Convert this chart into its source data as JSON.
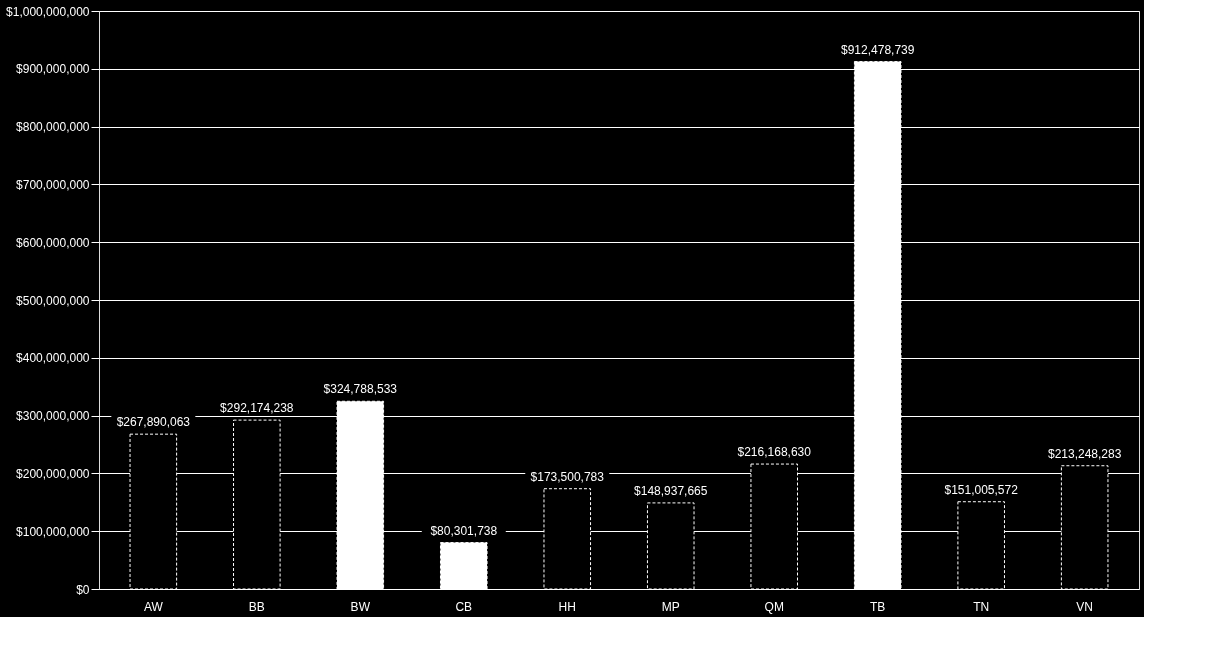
{
  "chart_data": {
    "type": "bar",
    "categories": [
      "AW",
      "BB",
      "BW",
      "CB",
      "HH",
      "MP",
      "QM",
      "TB",
      "TN",
      "VN"
    ],
    "values": [
      267890063,
      292174238,
      324788533,
      80301738,
      173500783,
      148937665,
      216168630,
      912478739,
      151005572,
      213248283
    ],
    "colors": [
      "#000000",
      "#000000",
      "#ffffff",
      "#ffffff",
      "#000000",
      "#000000",
      "#000000",
      "#ffffff",
      "#000000",
      "#000000"
    ],
    "value_labels": [
      "$267,890,063",
      "$292,174,238",
      "$324,788,533",
      "$80,301,738",
      "$173,500,783",
      "$148,937,665",
      "$216,168,630",
      "$912,478,739",
      "$151,005,572",
      "$213,248,283"
    ],
    "ylim": [
      0,
      1000000000
    ],
    "yticks": [
      {
        "value": 0,
        "label": "$0"
      },
      {
        "value": 100000000,
        "label": "$100,000,000"
      },
      {
        "value": 200000000,
        "label": "$200,000,000"
      },
      {
        "value": 300000000,
        "label": "$300,000,000"
      },
      {
        "value": 400000000,
        "label": "$400,000,000"
      },
      {
        "value": 500000000,
        "label": "$500,000,000"
      },
      {
        "value": 600000000,
        "label": "$600,000,000"
      },
      {
        "value": 700000000,
        "label": "$700,000,000"
      },
      {
        "value": 800000000,
        "label": "$800,000,000"
      },
      {
        "value": 900000000,
        "label": "$900,000,000"
      },
      {
        "value": 1000000000,
        "label": "$1,000,000,000"
      }
    ],
    "grid": "y"
  }
}
